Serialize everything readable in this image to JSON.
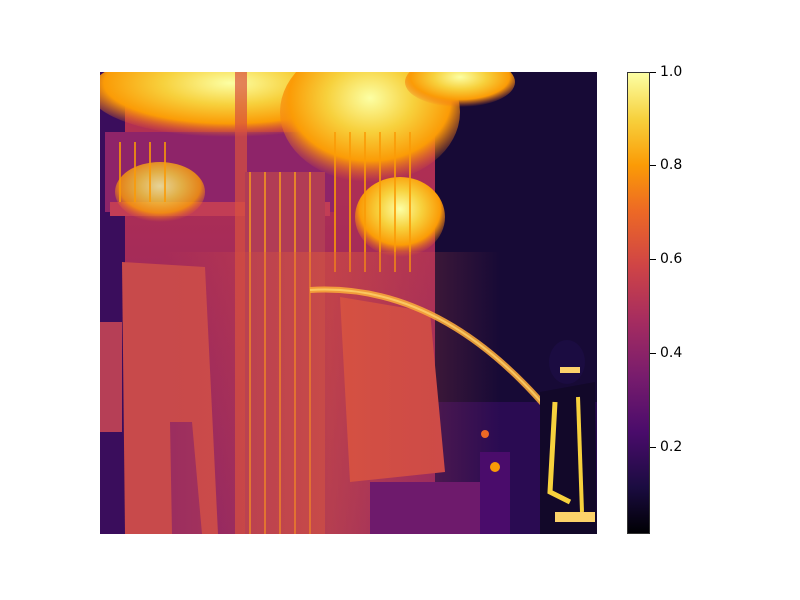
{
  "image": {
    "description_name": "thermal-heatmap-firefighter-scene",
    "colormap": "inferno"
  },
  "colorbar": {
    "ticks": [
      "1.0",
      "0.8",
      "0.6",
      "0.4",
      "0.2"
    ],
    "tick_values": [
      1.0,
      0.8,
      0.6,
      0.4,
      0.2
    ],
    "min": 0.02,
    "max": 1.0
  },
  "colors": {
    "flame_hot": "#fcffa4",
    "flame_mid": "#fb9b06",
    "wall_mid": "#cf4446",
    "shadow": "#1b0c41"
  }
}
